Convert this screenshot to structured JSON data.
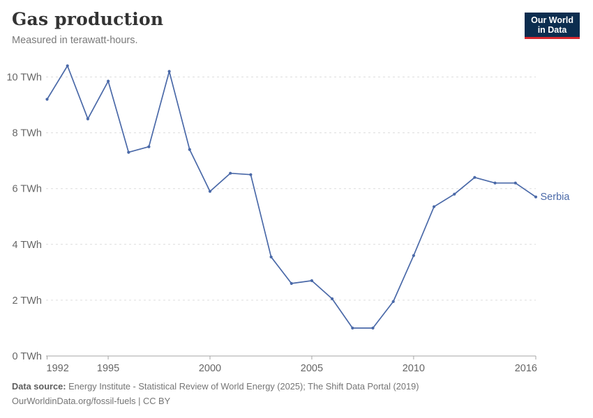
{
  "header": {
    "title": "Gas production",
    "subtitle": "Measured in terawatt-hours.",
    "logo": {
      "line1": "Our World",
      "line2": "in Data",
      "bg_color": "#0c2d4f",
      "accent_color": "#d7282f"
    }
  },
  "chart_data": {
    "type": "line",
    "title": "Gas production",
    "subtitle": "Measured in terawatt-hours.",
    "unit": "TWh",
    "grid": true,
    "xlabel": "",
    "ylabel": "",
    "xlim": [
      1992,
      2016
    ],
    "ylim": [
      0,
      10.5
    ],
    "x": [
      1992,
      1993,
      1994,
      1995,
      1996,
      1997,
      1998,
      1999,
      2000,
      2001,
      2002,
      2003,
      2004,
      2005,
      2006,
      2007,
      2008,
      2009,
      2010,
      2011,
      2012,
      2013,
      2014,
      2015,
      2016
    ],
    "series": [
      {
        "name": "Serbia",
        "color": "#4a69a8",
        "values": [
          9.2,
          10.4,
          8.5,
          9.85,
          7.3,
          7.5,
          10.2,
          7.4,
          5.9,
          6.55,
          6.5,
          3.55,
          2.6,
          2.7,
          2.05,
          1.0,
          1.0,
          1.95,
          3.6,
          5.35,
          5.8,
          6.4,
          6.2,
          6.2,
          5.7
        ]
      }
    ],
    "x_ticks": [
      1992,
      1995,
      2000,
      2005,
      2010,
      2016
    ],
    "x_tick_labels": [
      "1992",
      "1995",
      "2000",
      "2005",
      "2010",
      "2016"
    ],
    "y_ticks": [
      0,
      2,
      4,
      6,
      8,
      10
    ],
    "y_tick_labels": [
      "0 TWh",
      "2 TWh",
      "4 TWh",
      "6 TWh",
      "8 TWh",
      "10 TWh"
    ],
    "legend_position": "end-of-line-label",
    "colors": {
      "gridline": "#dcdcdc",
      "axis": "#a5a5a5",
      "tick_text": "#666666"
    }
  },
  "footer": {
    "datasource_label": "Data source:",
    "datasource_text": " Energy Institute - Statistical Review of World Energy (2025); The Shift Data Portal (2019)",
    "license_line": "OurWorldinData.org/fossil-fuels | CC BY"
  }
}
